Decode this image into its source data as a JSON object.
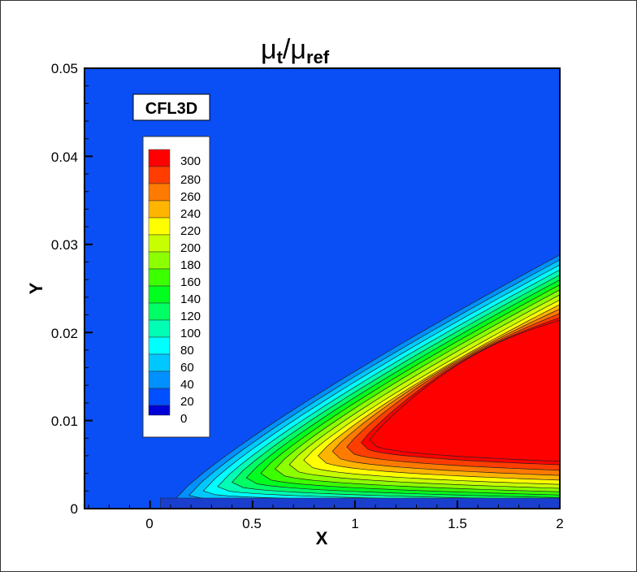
{
  "chart_data": {
    "type": "heatmap",
    "subtype": "filled-contour",
    "title": "μt/μref",
    "title_parts": {
      "base": "μ",
      "sub1": "t",
      "sep": "/",
      "base2": "μ",
      "sub2": "ref"
    },
    "xlabel": "X",
    "ylabel": "Y",
    "xlim": [
      -0.32,
      2
    ],
    "ylim": [
      0,
      0.05
    ],
    "xticks": [
      0,
      0.5,
      1,
      1.5,
      2
    ],
    "xtick_labels": [
      "0",
      "0.5",
      "1",
      "1.5",
      "2"
    ],
    "yticks": [
      0,
      0.01,
      0.02,
      0.03,
      0.04,
      0.05
    ],
    "ytick_labels": [
      "0",
      "0.01",
      "0.02",
      "0.03",
      "0.04",
      "0.05"
    ],
    "annotation": "CFL3D",
    "legend": {
      "position": "upper-left inside",
      "levels": [
        300,
        280,
        260,
        240,
        220,
        200,
        180,
        160,
        140,
        120,
        100,
        80,
        60,
        40,
        20,
        0
      ],
      "colors": [
        "#ff0000",
        "#ff3d00",
        "#ff7a00",
        "#ffb400",
        "#ffff00",
        "#c8ff00",
        "#8cff00",
        "#3cff00",
        "#00ff1e",
        "#00ff64",
        "#00ffb4",
        "#00ffff",
        "#00c8ff",
        "#0090ff",
        "#0050ff",
        "#0000d8"
      ]
    },
    "background_value": 20,
    "features": {
      "boundary_layer_edge_y_at_x2": 0.03,
      "leading_edge_x": 0.05,
      "peak_region_min_x": 1.12,
      "peak_region_y_range_at_x2": [
        0.005,
        0.022
      ],
      "max_value": ">300"
    }
  },
  "plot": {
    "title_base": "μ",
    "title_sub1": "t",
    "title_sep": "/",
    "title_base2": "μ",
    "title_sub2": "ref",
    "xlabel": "X",
    "ylabel": "Y",
    "annotation": "CFL3D"
  }
}
